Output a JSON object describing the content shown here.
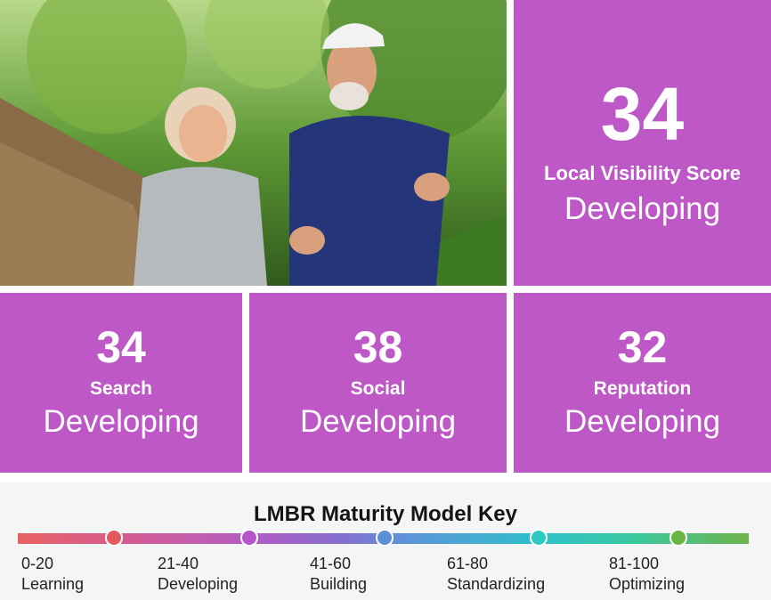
{
  "hero": {
    "photo_alt": "",
    "score": "34",
    "label": "Local Visibility Score",
    "status": "Developing"
  },
  "tiles": [
    {
      "score": "34",
      "label": "Search",
      "status": "Developing"
    },
    {
      "score": "38",
      "label": "Social",
      "status": "Developing"
    },
    {
      "score": "32",
      "label": "Reputation",
      "status": "Developing"
    }
  ],
  "key": {
    "title": "LMBR Maturity Model Key",
    "levels": [
      {
        "range": "0-20",
        "name": "Learning",
        "color": "#e35a5e"
      },
      {
        "range": "21-40",
        "name": "Developing",
        "color": "#b455c8"
      },
      {
        "range": "41-60",
        "name": "Building",
        "color": "#5b8fd6"
      },
      {
        "range": "61-80",
        "name": "Standardizing",
        "color": "#2ccac5"
      },
      {
        "range": "81-100",
        "name": "Optimizing",
        "color": "#6ab443"
      }
    ]
  },
  "colors": {
    "tile_bg": "#bd58c6",
    "key_bg": "#f4f6f5"
  }
}
